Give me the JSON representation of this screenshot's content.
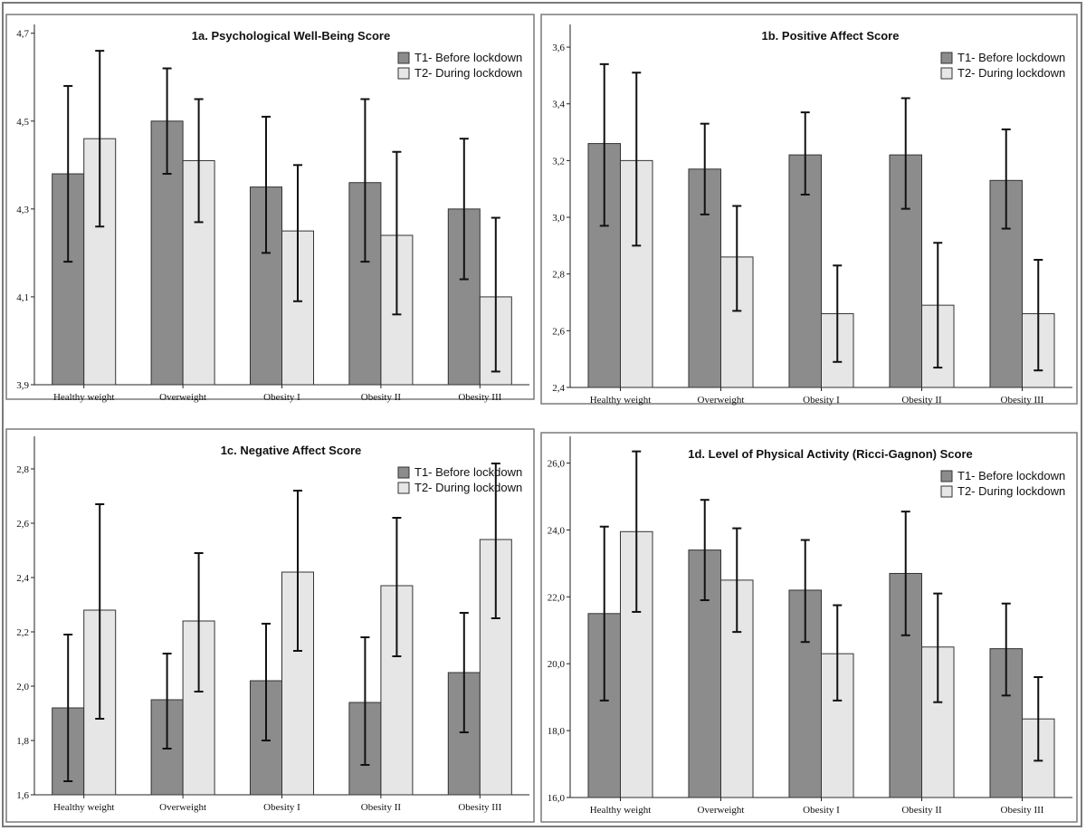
{
  "colors": {
    "t1": "#8c8c8c",
    "t2": "#e6e6e6",
    "frame": "#7a7a7a",
    "bar_stroke": "#333333",
    "error": "#111111"
  },
  "chart_data": [
    {
      "id": "1a",
      "type": "bar",
      "title": "1a. Psychological Well-Being Score",
      "categories": [
        "Healthy weight",
        "Overweight",
        "Obesity I",
        "Obesity II",
        "Obesity III"
      ],
      "ylim": [
        3.9,
        4.72
      ],
      "yticks": [
        3.9,
        4.1,
        4.3,
        4.5,
        4.7
      ],
      "series": [
        {
          "name": "T1- Before lockdown",
          "values": [
            4.38,
            4.5,
            4.35,
            4.36,
            4.3
          ],
          "err_low": [
            4.18,
            4.38,
            4.2,
            4.18,
            4.14
          ],
          "err_high": [
            4.58,
            4.62,
            4.51,
            4.55,
            4.46
          ]
        },
        {
          "name": "T2- During lockdown",
          "values": [
            4.46,
            4.41,
            4.25,
            4.24,
            4.1
          ],
          "err_low": [
            4.26,
            4.27,
            4.09,
            4.06,
            3.93
          ],
          "err_high": [
            4.66,
            4.55,
            4.4,
            4.43,
            4.28
          ]
        }
      ]
    },
    {
      "id": "1b",
      "type": "bar",
      "title": "1b. Positive Affect Score",
      "categories": [
        "Healthy weight",
        "Overweight",
        "Obesity I",
        "Obesity II",
        "Obesity III"
      ],
      "ylim": [
        2.4,
        3.68
      ],
      "yticks": [
        2.4,
        2.6,
        2.8,
        3.0,
        3.2,
        3.4,
        3.6
      ],
      "series": [
        {
          "name": "T1- Before lockdown",
          "values": [
            3.26,
            3.17,
            3.22,
            3.22,
            3.13
          ],
          "err_low": [
            2.97,
            3.01,
            3.08,
            3.03,
            2.96
          ],
          "err_high": [
            3.54,
            3.33,
            3.37,
            3.42,
            3.31
          ]
        },
        {
          "name": "T2- During lockdown",
          "values": [
            3.2,
            2.86,
            2.66,
            2.69,
            2.66
          ],
          "err_low": [
            2.9,
            2.67,
            2.49,
            2.47,
            2.46
          ],
          "err_high": [
            3.51,
            3.04,
            2.83,
            2.91,
            2.85
          ]
        }
      ]
    },
    {
      "id": "1c",
      "type": "bar",
      "title": "1c. Negative Affect Score",
      "categories": [
        "Healthy weight",
        "Overweight",
        "Obesity I",
        "Obesity II",
        "Obesity III"
      ],
      "ylim": [
        1.6,
        2.92
      ],
      "yticks": [
        1.6,
        1.8,
        2.0,
        2.2,
        2.4,
        2.6,
        2.8
      ],
      "series": [
        {
          "name": "T1- Before lockdown",
          "values": [
            1.92,
            1.95,
            2.02,
            1.94,
            2.05
          ],
          "err_low": [
            1.65,
            1.77,
            1.8,
            1.71,
            1.83
          ],
          "err_high": [
            2.19,
            2.12,
            2.23,
            2.18,
            2.27
          ]
        },
        {
          "name": "T2- During lockdown",
          "values": [
            2.28,
            2.24,
            2.42,
            2.37,
            2.54
          ],
          "err_low": [
            1.88,
            1.98,
            2.13,
            2.11,
            2.25
          ],
          "err_high": [
            2.67,
            2.49,
            2.72,
            2.62,
            2.82
          ]
        }
      ]
    },
    {
      "id": "1d",
      "type": "bar",
      "title": "1d. Level of Physical Activity (Ricci-Gagnon) Score",
      "categories": [
        "Healthy weight",
        "Overweight",
        "Obesity I",
        "Obesity II",
        "Obesity III"
      ],
      "ylim": [
        16.0,
        26.8
      ],
      "yticks": [
        16.0,
        18.0,
        20.0,
        22.0,
        24.0,
        26.0
      ],
      "series": [
        {
          "name": "T1- Before lockdown",
          "values": [
            21.5,
            23.4,
            22.2,
            22.7,
            20.45
          ],
          "err_low": [
            18.9,
            21.9,
            20.65,
            20.85,
            19.05
          ],
          "err_high": [
            24.1,
            24.9,
            23.7,
            24.55,
            21.8
          ]
        },
        {
          "name": "T2- During lockdown",
          "values": [
            23.95,
            22.5,
            20.3,
            20.5,
            18.35
          ],
          "err_low": [
            21.55,
            20.95,
            18.9,
            18.85,
            17.1
          ],
          "err_high": [
            26.35,
            24.05,
            21.75,
            22.1,
            19.6
          ]
        }
      ]
    }
  ]
}
